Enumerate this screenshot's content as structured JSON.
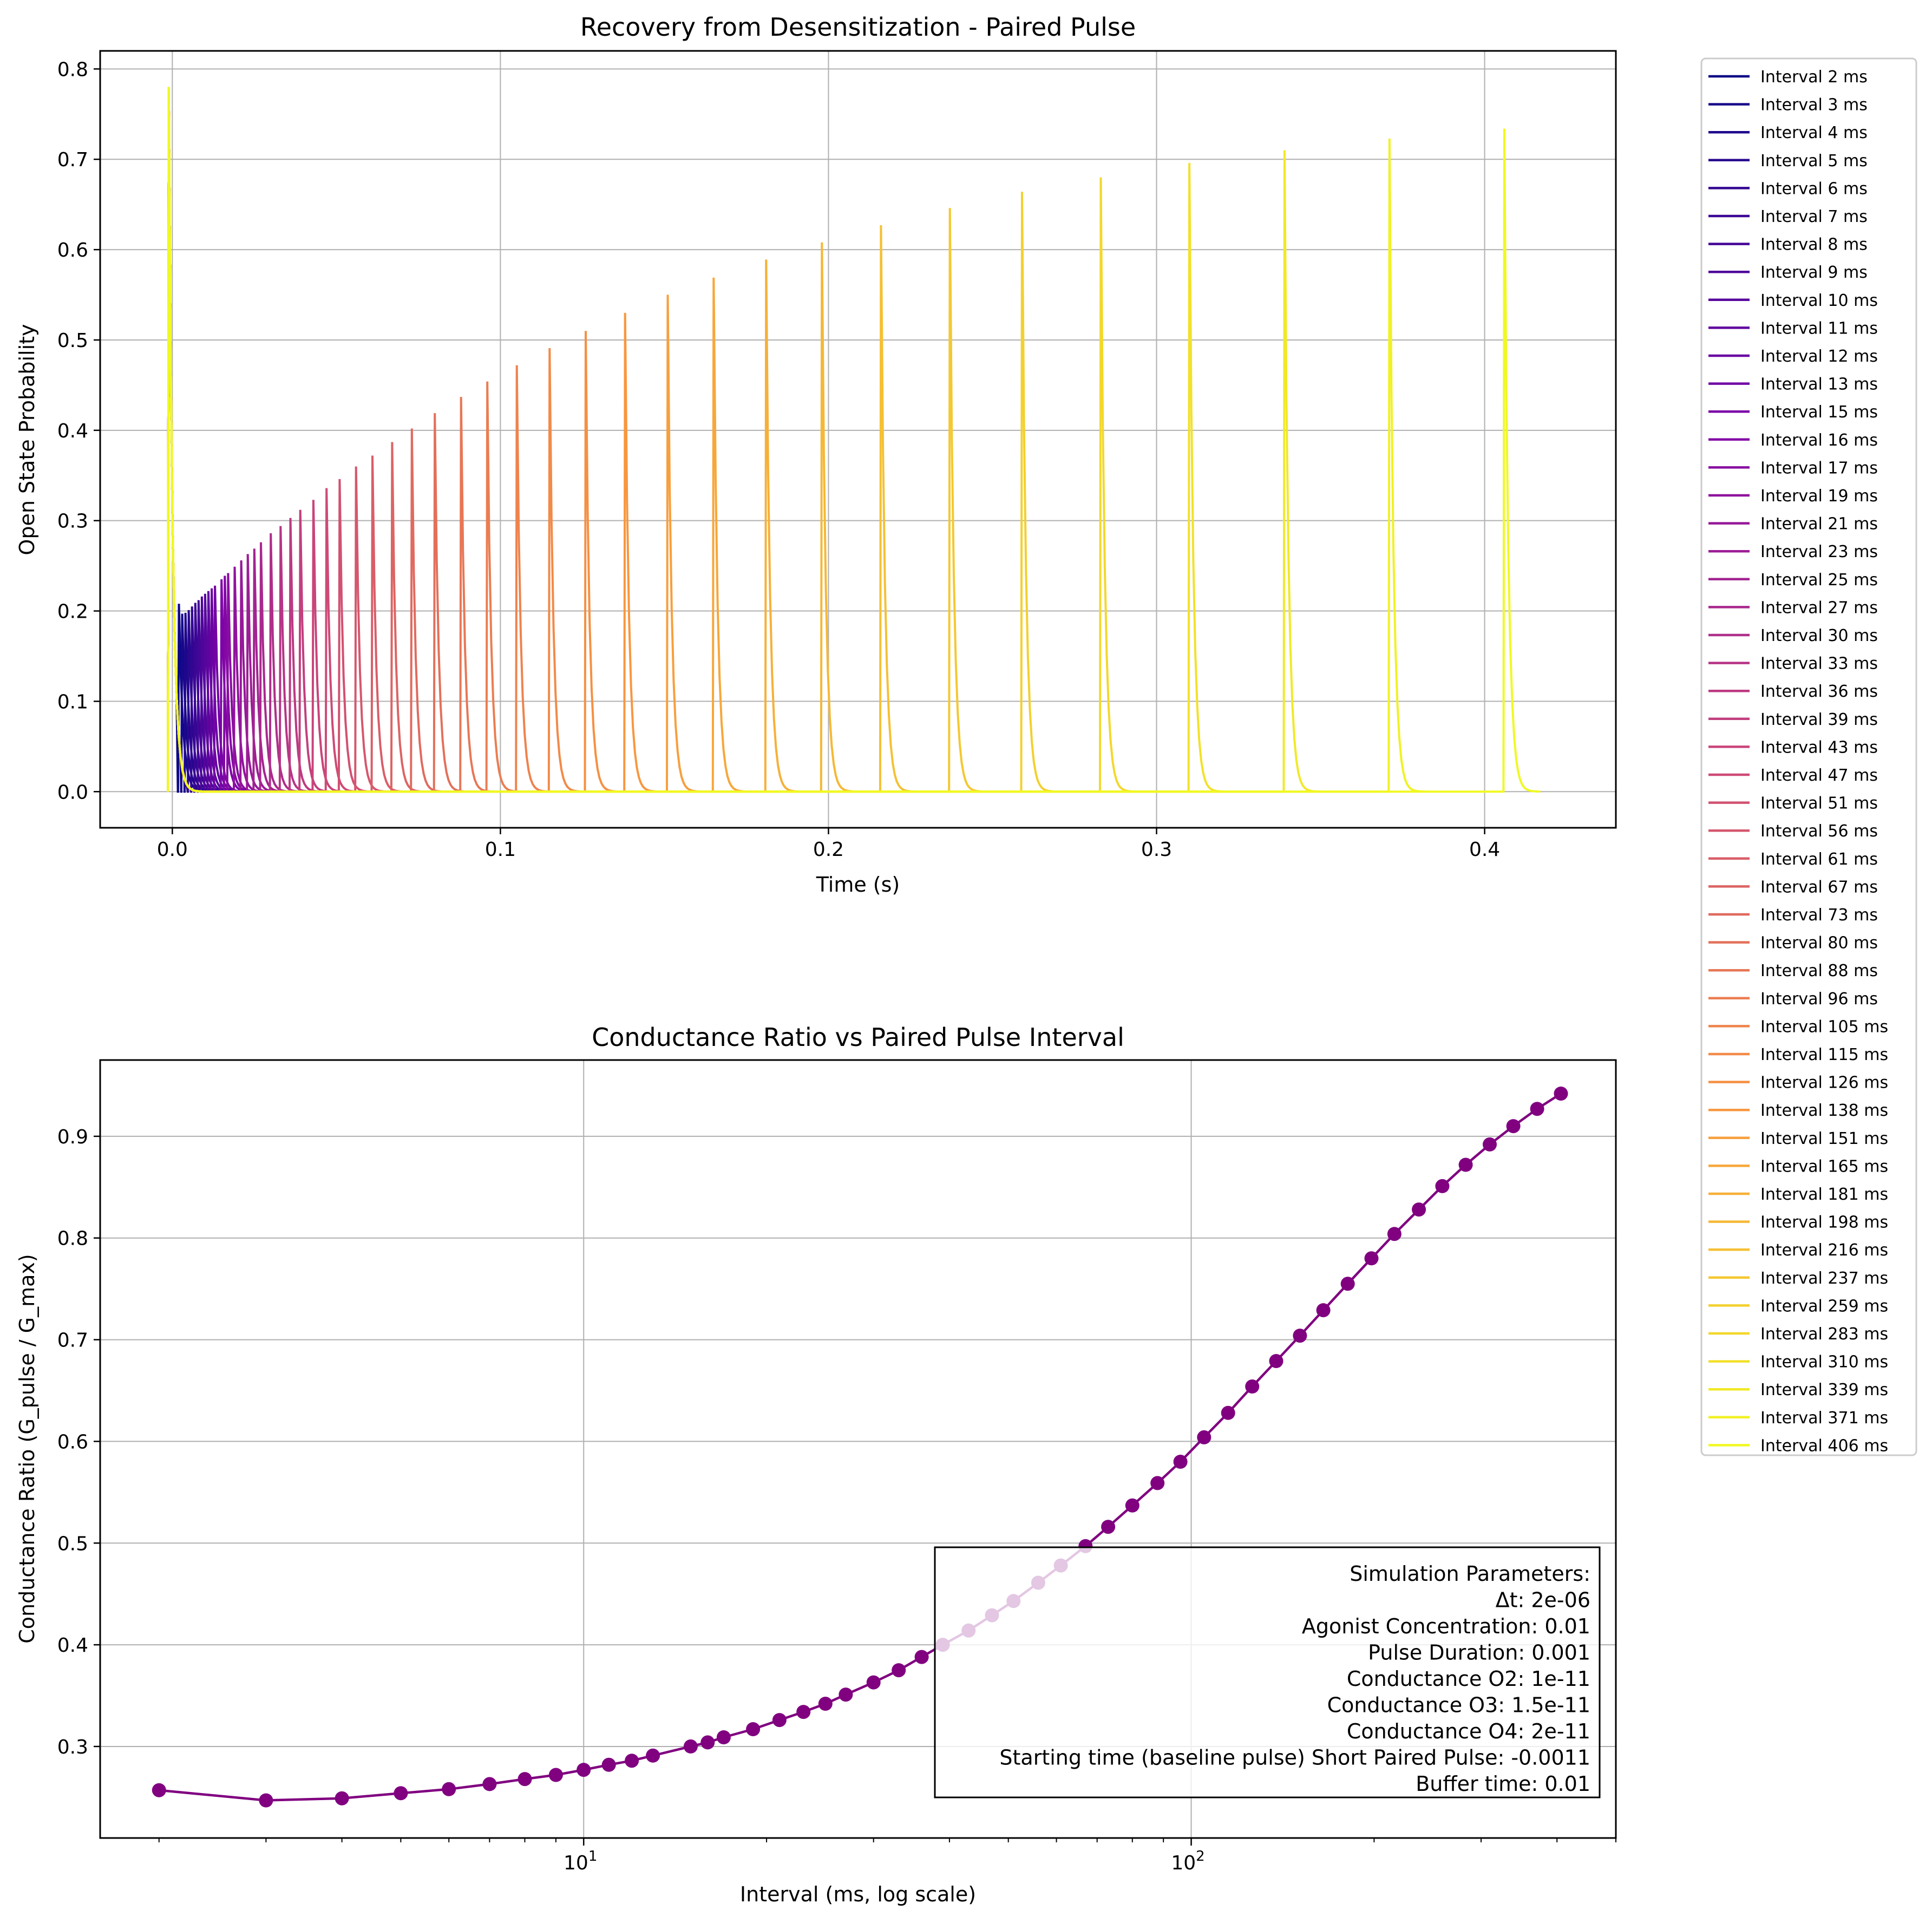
{
  "chart_data": [
    {
      "type": "line",
      "title": "Recovery from Desensitization - Paired Pulse",
      "xlabel": "Time (s)",
      "ylabel": "Open State Probability",
      "xlim": [
        -0.022,
        0.44
      ],
      "ylim": [
        -0.04,
        0.82
      ],
      "xticks": [
        0.0,
        0.1,
        0.2,
        0.3,
        0.4
      ],
      "xtick_labels": [
        "0.0",
        "0.1",
        "0.2",
        "0.3",
        "0.4"
      ],
      "yticks": [
        0.0,
        0.1,
        0.2,
        0.3,
        0.4,
        0.5,
        0.6,
        0.7,
        0.8
      ],
      "ytick_labels": [
        "0.0",
        "0.1",
        "0.2",
        "0.3",
        "0.4",
        "0.5",
        "0.6",
        "0.7",
        "0.8"
      ],
      "grid": true,
      "legend_position": "outside-right",
      "colormap": "plasma",
      "baseline_pulse": {
        "time_s": -0.0011,
        "peak": 0.78
      },
      "series": [
        {
          "name": "Interval 2 ms",
          "interval_ms": 2,
          "peak": 0.208
        },
        {
          "name": "Interval 3 ms",
          "interval_ms": 3,
          "peak": 0.197
        },
        {
          "name": "Interval 4 ms",
          "interval_ms": 4,
          "peak": 0.198
        },
        {
          "name": "Interval 5 ms",
          "interval_ms": 5,
          "peak": 0.201
        },
        {
          "name": "Interval 6 ms",
          "interval_ms": 6,
          "peak": 0.205
        },
        {
          "name": "Interval 7 ms",
          "interval_ms": 7,
          "peak": 0.209
        },
        {
          "name": "Interval 8 ms",
          "interval_ms": 8,
          "peak": 0.212
        },
        {
          "name": "Interval 9 ms",
          "interval_ms": 9,
          "peak": 0.216
        },
        {
          "name": "Interval 10 ms",
          "interval_ms": 10,
          "peak": 0.219
        },
        {
          "name": "Interval 11 ms",
          "interval_ms": 11,
          "peak": 0.222
        },
        {
          "name": "Interval 12 ms",
          "interval_ms": 12,
          "peak": 0.225
        },
        {
          "name": "Interval 13 ms",
          "interval_ms": 13,
          "peak": 0.228
        },
        {
          "name": "Interval 15 ms",
          "interval_ms": 15,
          "peak": 0.235
        },
        {
          "name": "Interval 16 ms",
          "interval_ms": 16,
          "peak": 0.239
        },
        {
          "name": "Interval 17 ms",
          "interval_ms": 17,
          "peak": 0.242
        },
        {
          "name": "Interval 19 ms",
          "interval_ms": 19,
          "peak": 0.249
        },
        {
          "name": "Interval 21 ms",
          "interval_ms": 21,
          "peak": 0.256
        },
        {
          "name": "Interval 23 ms",
          "interval_ms": 23,
          "peak": 0.263
        },
        {
          "name": "Interval 25 ms",
          "interval_ms": 25,
          "peak": 0.269
        },
        {
          "name": "Interval 27 ms",
          "interval_ms": 27,
          "peak": 0.276
        },
        {
          "name": "Interval 30 ms",
          "interval_ms": 30,
          "peak": 0.286
        },
        {
          "name": "Interval 33 ms",
          "interval_ms": 33,
          "peak": 0.294
        },
        {
          "name": "Interval 36 ms",
          "interval_ms": 36,
          "peak": 0.303
        },
        {
          "name": "Interval 39 ms",
          "interval_ms": 39,
          "peak": 0.312
        },
        {
          "name": "Interval 43 ms",
          "interval_ms": 43,
          "peak": 0.323
        },
        {
          "name": "Interval 47 ms",
          "interval_ms": 47,
          "peak": 0.336
        },
        {
          "name": "Interval 51 ms",
          "interval_ms": 51,
          "peak": 0.346
        },
        {
          "name": "Interval 56 ms",
          "interval_ms": 56,
          "peak": 0.36
        },
        {
          "name": "Interval 61 ms",
          "interval_ms": 61,
          "peak": 0.372
        },
        {
          "name": "Interval 67 ms",
          "interval_ms": 67,
          "peak": 0.387
        },
        {
          "name": "Interval 73 ms",
          "interval_ms": 73,
          "peak": 0.402
        },
        {
          "name": "Interval 80 ms",
          "interval_ms": 80,
          "peak": 0.419
        },
        {
          "name": "Interval 88 ms",
          "interval_ms": 88,
          "peak": 0.437
        },
        {
          "name": "Interval 96 ms",
          "interval_ms": 96,
          "peak": 0.454
        },
        {
          "name": "Interval 105 ms",
          "interval_ms": 105,
          "peak": 0.472
        },
        {
          "name": "Interval 115 ms",
          "interval_ms": 115,
          "peak": 0.491
        },
        {
          "name": "Interval 126 ms",
          "interval_ms": 126,
          "peak": 0.51
        },
        {
          "name": "Interval 138 ms",
          "interval_ms": 138,
          "peak": 0.53
        },
        {
          "name": "Interval 151 ms",
          "interval_ms": 151,
          "peak": 0.55
        },
        {
          "name": "Interval 165 ms",
          "interval_ms": 165,
          "peak": 0.569
        },
        {
          "name": "Interval 181 ms",
          "interval_ms": 181,
          "peak": 0.589
        },
        {
          "name": "Interval 198 ms",
          "interval_ms": 198,
          "peak": 0.608
        },
        {
          "name": "Interval 216 ms",
          "interval_ms": 216,
          "peak": 0.627
        },
        {
          "name": "Interval 237 ms",
          "interval_ms": 237,
          "peak": 0.646
        },
        {
          "name": "Interval 259 ms",
          "interval_ms": 259,
          "peak": 0.664
        },
        {
          "name": "Interval 283 ms",
          "interval_ms": 283,
          "peak": 0.68
        },
        {
          "name": "Interval 310 ms",
          "interval_ms": 310,
          "peak": 0.696
        },
        {
          "name": "Interval 339 ms",
          "interval_ms": 339,
          "peak": 0.71
        },
        {
          "name": "Interval 371 ms",
          "interval_ms": 371,
          "peak": 0.723
        },
        {
          "name": "Interval 406 ms",
          "interval_ms": 406,
          "peak": 0.734
        }
      ]
    },
    {
      "type": "line",
      "title": "Conductance Ratio vs Paired Pulse Interval",
      "xlabel": "Interval (ms, log scale)",
      "ylabel": "Conductance Ratio (G_pulse / G_max)",
      "xscale": "log",
      "xlim": [
        1.6,
        500
      ],
      "ylim": [
        0.21,
        0.975
      ],
      "yticks": [
        0.3,
        0.4,
        0.5,
        0.6,
        0.7,
        0.8,
        0.9
      ],
      "ytick_labels": [
        "0.3",
        "0.4",
        "0.5",
        "0.6",
        "0.7",
        "0.8",
        "0.9"
      ],
      "xtick_major": [
        10,
        100
      ],
      "xtick_major_base": "10",
      "xtick_major_exp": [
        "1",
        "2"
      ],
      "grid": true,
      "line_color": "#800080",
      "marker": "circle",
      "x": [
        2,
        3,
        4,
        5,
        6,
        7,
        8,
        9,
        10,
        11,
        12,
        13,
        15,
        16,
        17,
        19,
        21,
        23,
        25,
        27,
        30,
        33,
        36,
        39,
        43,
        47,
        51,
        56,
        61,
        67,
        73,
        80,
        88,
        96,
        105,
        115,
        126,
        138,
        151,
        165,
        181,
        198,
        216,
        237,
        259,
        283,
        310,
        339,
        371,
        406
      ],
      "y": [
        0.257,
        0.247,
        0.249,
        0.254,
        0.258,
        0.263,
        0.268,
        0.272,
        0.277,
        0.282,
        0.286,
        0.291,
        0.3,
        0.304,
        0.309,
        0.317,
        0.326,
        0.334,
        0.342,
        0.351,
        0.363,
        0.375,
        0.388,
        0.4,
        0.414,
        0.429,
        0.443,
        0.461,
        0.478,
        0.497,
        0.516,
        0.537,
        0.559,
        0.58,
        0.604,
        0.628,
        0.654,
        0.679,
        0.704,
        0.729,
        0.755,
        0.78,
        0.804,
        0.828,
        0.851,
        0.872,
        0.892,
        0.91,
        0.927,
        0.942
      ],
      "annotation": {
        "position": "lower-right",
        "lines": [
          "Simulation Parameters:",
          "Δt: 2e-06",
          "Agonist Concentration: 0.01",
          "Pulse Duration: 0.001",
          "Conductance O2: 1e-11",
          "Conductance O3: 1.5e-11",
          "Conductance O4: 2e-11",
          "Starting time (baseline pulse) Short Paired Pulse: -0.0011",
          "Buffer time: 0.01"
        ]
      }
    }
  ]
}
